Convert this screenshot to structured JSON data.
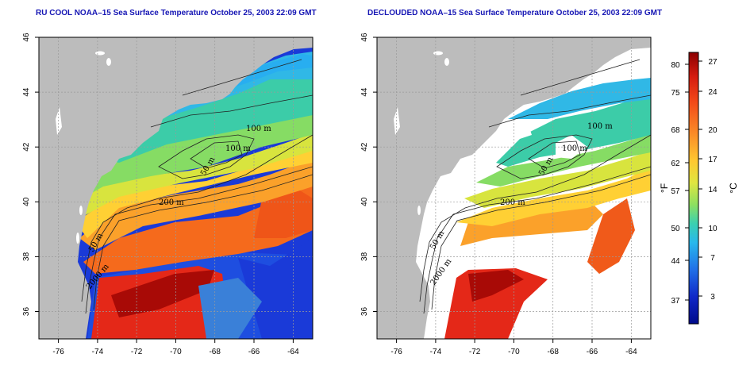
{
  "titles": {
    "left": "RU COOL NOAA–15 Sea Surface Temperature October 25, 2003 22:09 GMT",
    "right": "DECLOUDED NOAA–15 Sea Surface Temperature October 25, 2003 22:09 GMT"
  },
  "axes": {
    "x_ticks": [
      "-76",
      "-74",
      "-72",
      "-70",
      "-68",
      "-66",
      "-64"
    ],
    "y_ticks": [
      "36",
      "38",
      "40",
      "42",
      "44",
      "46"
    ],
    "x_range": [
      -77,
      -63
    ],
    "y_range": [
      35,
      46
    ]
  },
  "contour_labels": {
    "left": [
      "100 m",
      "100 m",
      "50 m",
      "200 m",
      "50 m",
      "2000 m"
    ],
    "right": [
      "100 m",
      "100 m",
      "50 m",
      "200 m",
      "50 m",
      "2000 m"
    ]
  },
  "colorbar": {
    "fahrenheit_ticks": [
      "80",
      "75",
      "68",
      "62",
      "57",
      "50",
      "44",
      "37"
    ],
    "celsius_ticks": [
      "27",
      "24",
      "20",
      "17",
      "14",
      "10",
      "7",
      "3"
    ],
    "fahrenheit_unit": "°F",
    "celsius_unit": "°C",
    "colors": [
      "#8b0000",
      "#d61c10",
      "#f24818",
      "#fa8c28",
      "#ffc830",
      "#e0e640",
      "#8ee060",
      "#3ad0b0",
      "#28b8ec",
      "#2070e8",
      "#1028c8",
      "#000a8a"
    ]
  },
  "legend_colors": {
    "land": "#bcbcbc",
    "no_data": "#ffffff",
    "grid": "#9a9a9a"
  }
}
